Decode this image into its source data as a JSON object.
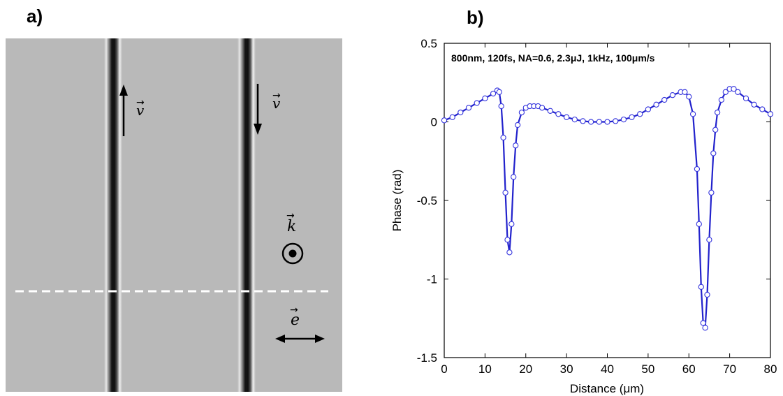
{
  "panel_a": {
    "label": "a)",
    "velocity_label_left": "v",
    "velocity_label_right": "v",
    "wavevector_label": "k",
    "polarization_label": "e"
  },
  "panel_b": {
    "label": "b)"
  },
  "chart_data": {
    "type": "line",
    "title": "800nm, 120fs, NA=0.6, 2.3μJ, 1kHz, 100μm/s",
    "xlabel": "Distance (μm)",
    "ylabel": "Phase (rad)",
    "xlim": [
      0,
      80
    ],
    "ylim": [
      -1.5,
      0.5
    ],
    "xticks": [
      0,
      10,
      20,
      30,
      40,
      50,
      60,
      70,
      80
    ],
    "yticks": [
      0.5,
      0,
      -0.5,
      -1,
      -1.5
    ],
    "xtick_labels": [
      "0",
      "10",
      "20",
      "30",
      "40",
      "50",
      "60",
      "70",
      "80"
    ],
    "ytick_labels": [
      "0.5",
      "0",
      "-0.5",
      "-1",
      "-1.5"
    ],
    "grid": false,
    "colors": {
      "series": "#2222cc",
      "marker_face": "#ffffff",
      "marker_edge": "#3333dd"
    },
    "series": [
      {
        "marker": "open-circle",
        "x": [
          0,
          2,
          4,
          6,
          8,
          10,
          12,
          13,
          13.5,
          14,
          14.5,
          15,
          15.5,
          16,
          16.5,
          17,
          17.5,
          18,
          19,
          20,
          21,
          22,
          23,
          24,
          26,
          28,
          30,
          32,
          34,
          36,
          38,
          40,
          42,
          44,
          46,
          48,
          50,
          52,
          54,
          56,
          58,
          59,
          60,
          61,
          62,
          62.5,
          63,
          63.5,
          64,
          64.5,
          65,
          65.5,
          66,
          66.5,
          67,
          68,
          69,
          70,
          71,
          72,
          74,
          76,
          78,
          80
        ],
        "y": [
          0.01,
          0.03,
          0.06,
          0.09,
          0.12,
          0.15,
          0.18,
          0.2,
          0.19,
          0.1,
          -0.1,
          -0.45,
          -0.75,
          -0.83,
          -0.65,
          -0.35,
          -0.15,
          -0.02,
          0.06,
          0.09,
          0.1,
          0.1,
          0.1,
          0.09,
          0.07,
          0.05,
          0.03,
          0.015,
          0.005,
          0.0,
          0.0,
          0.0,
          0.005,
          0.015,
          0.03,
          0.05,
          0.08,
          0.11,
          0.14,
          0.17,
          0.19,
          0.19,
          0.16,
          0.05,
          -0.3,
          -0.65,
          -1.05,
          -1.28,
          -1.31,
          -1.1,
          -0.75,
          -0.45,
          -0.2,
          -0.05,
          0.06,
          0.14,
          0.19,
          0.21,
          0.21,
          0.19,
          0.15,
          0.11,
          0.08,
          0.05
        ]
      }
    ]
  }
}
